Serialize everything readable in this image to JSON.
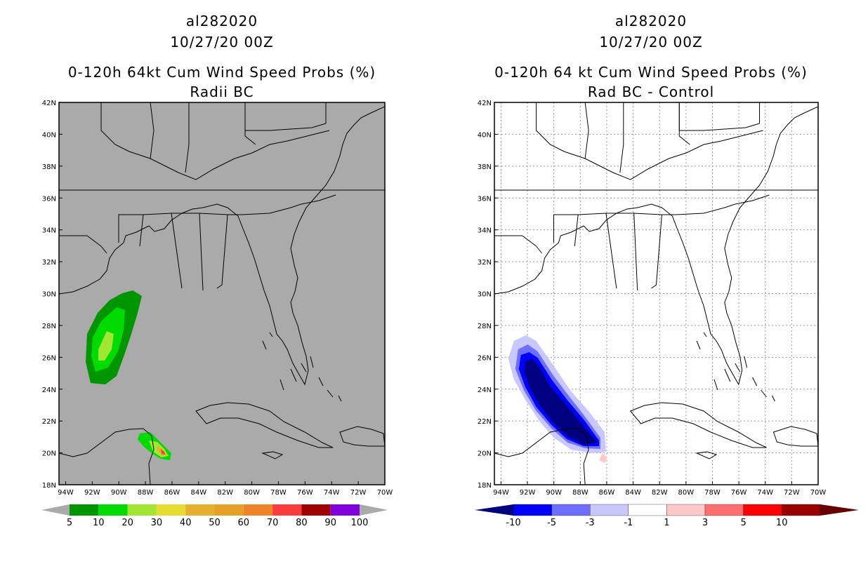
{
  "panels": [
    {
      "storm": "al282020",
      "datetime": "10/27/20 00Z",
      "title": "0-120h 64kt Cum Wind Speed Probs (%)",
      "subtitle": "Radii BC",
      "map_bg": "#aaaaaa",
      "colorbar_labels": [
        "5",
        "10",
        "20",
        "30",
        "40",
        "50",
        "60",
        "70",
        "80",
        "90",
        "100"
      ],
      "colorbar_colors": [
        "#009600",
        "#00dc00",
        "#a0e632",
        "#e6dc32",
        "#e6af2d",
        "#e6a028",
        "#f08228",
        "#fa3c3c",
        "#a00000",
        "#8200dc"
      ]
    },
    {
      "storm": "al282020",
      "datetime": "10/27/20 00Z",
      "title": "0-120h 64 kt Cum Wind Speed Probs (%)",
      "subtitle": "Rad BC - Control",
      "map_bg": "#ffffff",
      "colorbar_labels": [
        "-10",
        "-5",
        "-3",
        "-1",
        "1",
        "3",
        "5",
        "10"
      ],
      "colorbar_colors": [
        "#000080",
        "#0000ff",
        "#6e6eff",
        "#c8c8ff",
        "#ffffff",
        "#ffc8c8",
        "#ff6e6e",
        "#ff0000",
        "#990000",
        "#660000"
      ]
    }
  ],
  "chart_data": [
    {
      "type": "heatmap",
      "title": "0-120h 64kt Cum Wind Speed Probs (%)",
      "subtitle": "Radii BC",
      "xlim": [
        -94.5,
        -70
      ],
      "ylim": [
        18,
        42
      ],
      "x_ticks": [
        "94W",
        "92W",
        "90W",
        "88W",
        "86W",
        "84W",
        "82W",
        "80W",
        "78W",
        "76W",
        "74W",
        "72W",
        "70W"
      ],
      "y_ticks": [
        "18N",
        "20N",
        "22N",
        "24N",
        "26N",
        "28N",
        "30N",
        "32N",
        "34N",
        "36N",
        "38N",
        "40N",
        "42N"
      ],
      "grid": false,
      "features": [
        {
          "region": "western Gulf of Mexico",
          "level": "5-10%",
          "color": "#009600",
          "center": [
            -91.3,
            27.3
          ]
        },
        {
          "region": "western Gulf of Mexico",
          "level": "10-20%",
          "color": "#00dc00",
          "center": [
            -91.2,
            27.0
          ]
        },
        {
          "region": "western Gulf of Mexico",
          "level": "20-30%",
          "color": "#a0e632",
          "center": [
            -91.2,
            26.9
          ]
        },
        {
          "region": "Yucatan coast",
          "level": "up to 70%",
          "color": "#fa3c3c",
          "center": [
            -86.8,
            20.1
          ]
        }
      ]
    },
    {
      "type": "heatmap",
      "title": "0-120h 64 kt Cum Wind Speed Probs (%)",
      "subtitle": "Rad BC - Control",
      "xlim": [
        -94.5,
        -70
      ],
      "ylim": [
        18,
        42
      ],
      "x_ticks": [
        "94W",
        "92W",
        "90W",
        "88W",
        "86W",
        "84W",
        "82W",
        "80W",
        "78W",
        "76W",
        "74W",
        "72W",
        "70W"
      ],
      "y_ticks": [
        "18N",
        "20N",
        "22N",
        "24N",
        "26N",
        "28N",
        "30N",
        "32N",
        "34N",
        "36N",
        "38N",
        "40N",
        "42N"
      ],
      "grid": true,
      "features": [
        {
          "region": "southern Gulf of Mexico",
          "level": "< -10",
          "color": "#000080",
          "center": [
            -90.5,
            23.5
          ]
        },
        {
          "region": "southern Gulf of Mexico",
          "level": "-5 to -3",
          "color": "#6e6eff",
          "center": [
            -91.0,
            24.0
          ]
        },
        {
          "region": "Caribbean east of Yucatan",
          "level": "1 to 3",
          "color": "#ffc8c8",
          "center": [
            -86.0,
            19.6
          ]
        }
      ]
    }
  ]
}
